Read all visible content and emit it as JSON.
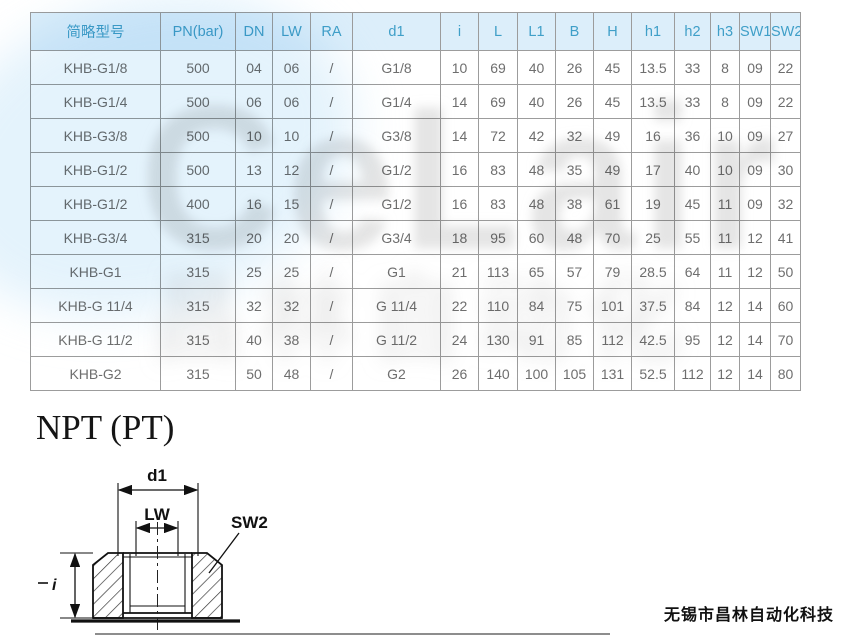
{
  "table": {
    "headers": [
      "简略型号",
      "PN(bar)",
      "DN",
      "LW",
      "RA",
      "d1",
      "i",
      "L",
      "L1",
      "B",
      "H",
      "h1",
      "h2",
      "h3",
      "SW1",
      "SW2"
    ],
    "rows": [
      [
        "KHB-G1/8",
        "500",
        "04",
        "06",
        "/",
        "G1/8",
        "10",
        "69",
        "40",
        "26",
        "45",
        "13.5",
        "33",
        "8",
        "09",
        "22"
      ],
      [
        "KHB-G1/4",
        "500",
        "06",
        "06",
        "/",
        "G1/4",
        "14",
        "69",
        "40",
        "26",
        "45",
        "13.5",
        "33",
        "8",
        "09",
        "22"
      ],
      [
        "KHB-G3/8",
        "500",
        "10",
        "10",
        "/",
        "G3/8",
        "14",
        "72",
        "42",
        "32",
        "49",
        "16",
        "36",
        "10",
        "09",
        "27"
      ],
      [
        "KHB-G1/2",
        "500",
        "13",
        "12",
        "/",
        "G1/2",
        "16",
        "83",
        "48",
        "35",
        "49",
        "17",
        "40",
        "10",
        "09",
        "30"
      ],
      [
        "KHB-G1/2",
        "400",
        "16",
        "15",
        "/",
        "G1/2",
        "16",
        "83",
        "48",
        "38",
        "61",
        "19",
        "45",
        "11",
        "09",
        "32"
      ],
      [
        "KHB-G3/4",
        "315",
        "20",
        "20",
        "/",
        "G3/4",
        "18",
        "95",
        "60",
        "48",
        "70",
        "25",
        "55",
        "11",
        "12",
        "41"
      ],
      [
        "KHB-G1",
        "315",
        "25",
        "25",
        "/",
        "G1",
        "21",
        "113",
        "65",
        "57",
        "79",
        "28.5",
        "64",
        "11",
        "12",
        "50"
      ],
      [
        "KHB-G 11/4",
        "315",
        "32",
        "32",
        "/",
        "G 11/4",
        "22",
        "110",
        "84",
        "75",
        "101",
        "37.5",
        "84",
        "12",
        "14",
        "60"
      ],
      [
        "KHB-G 11/2",
        "315",
        "40",
        "38",
        "/",
        "G 11/2",
        "24",
        "130",
        "91",
        "85",
        "112",
        "42.5",
        "95",
        "12",
        "14",
        "70"
      ],
      [
        "KHB-G2",
        "315",
        "50",
        "48",
        "/",
        "G2",
        "26",
        "140",
        "100",
        "105",
        "131",
        "52.5",
        "112",
        "12",
        "14",
        "80"
      ]
    ]
  },
  "section": {
    "heading": "NPT (PT)"
  },
  "diagram": {
    "labels": {
      "d1": "d1",
      "lw": "LW",
      "sw2": "SW2",
      "i": "i"
    }
  },
  "watermark": {
    "line1": "CeLair",
    "line2": "昌林自动化"
  },
  "footer": {
    "company": "无锡市昌林自动化科技"
  },
  "colors": {
    "header_bg": "#dceefa",
    "header_text": "#3f9fc8",
    "cell_text": "#6e6e6e",
    "grid_border": "#9c9c9c",
    "watermark_blue": "#bfe2f8",
    "watermark_gray": "#7c7c7c"
  }
}
